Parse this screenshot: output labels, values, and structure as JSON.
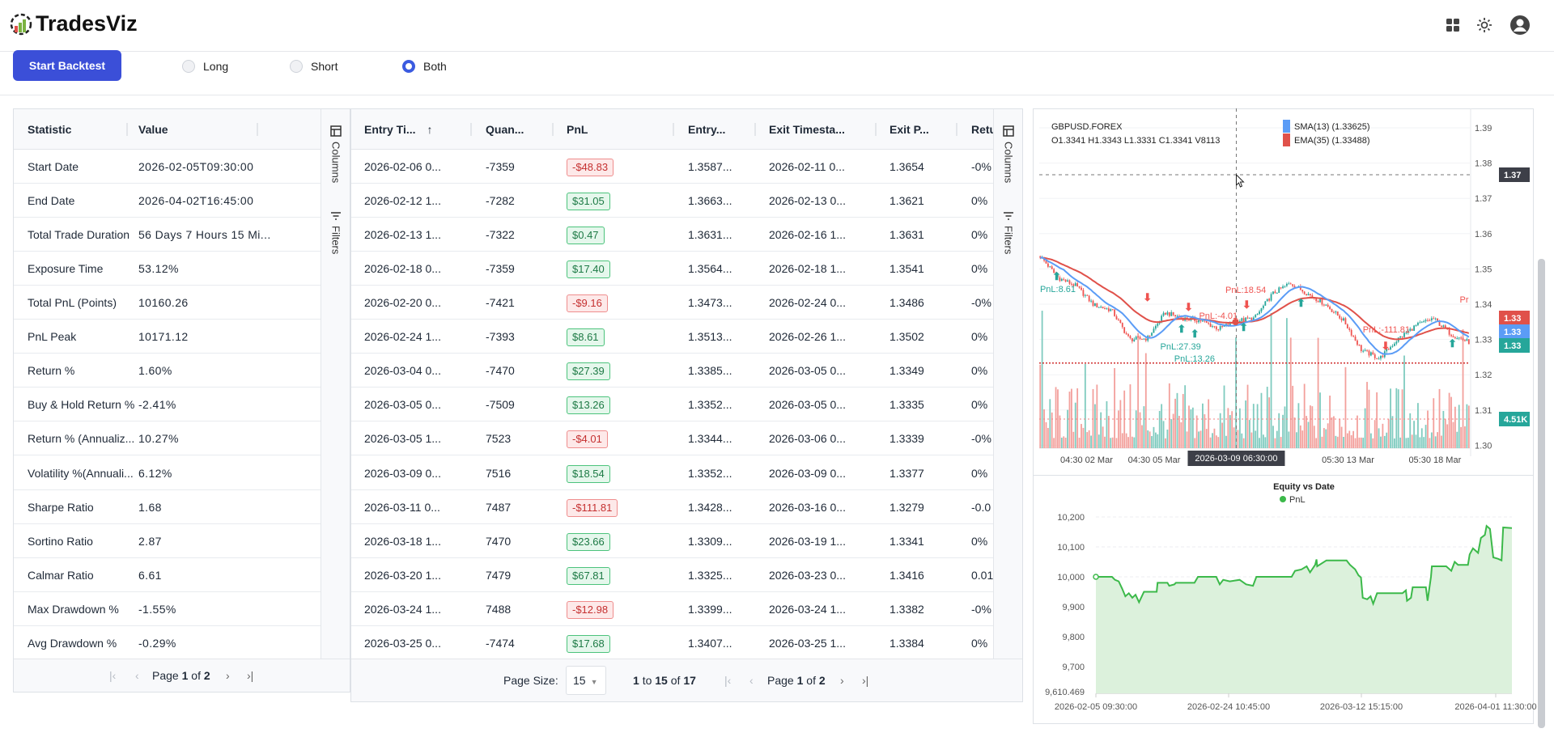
{
  "brand": {
    "name": "TradesViz"
  },
  "header_icons": [
    "apps-grid-icon",
    "theme-sun-icon",
    "user-avatar-icon"
  ],
  "toolbar": {
    "start_label": "Start Backtest",
    "directions": [
      {
        "label": "Long",
        "selected": false
      },
      {
        "label": "Short",
        "selected": false
      },
      {
        "label": "Both",
        "selected": true
      }
    ]
  },
  "side_panel": {
    "columns": "Columns",
    "filters": "Filters"
  },
  "stats": {
    "headers": [
      "Statistic",
      "Value"
    ],
    "rows": [
      [
        "Start Date",
        "2026-02-05T09:30:00"
      ],
      [
        "End Date",
        "2026-04-02T16:45:00"
      ],
      [
        "Total Trade Duration",
        "56 Days 7 Hours 15 Mi..."
      ],
      [
        "Exposure Time",
        "53.12%"
      ],
      [
        "Total PnL (Points)",
        "10160.26"
      ],
      [
        "PnL Peak",
        "10171.12"
      ],
      [
        "Return %",
        "1.60%"
      ],
      [
        "Buy & Hold Return %",
        "-2.41%"
      ],
      [
        "Return % (Annualiz...",
        "10.27%"
      ],
      [
        "Volatility %(Annuali...",
        "6.12%"
      ],
      [
        "Sharpe Ratio",
        "1.68"
      ],
      [
        "Sortino Ratio",
        "2.87"
      ],
      [
        "Calmar Ratio",
        "6.61"
      ],
      [
        "Max Drawdown %",
        "-1.55%"
      ],
      [
        "Avg Drawdown %",
        "-0.29%"
      ]
    ],
    "pagination": {
      "page_label": "Page",
      "current": "1",
      "of_label": "of",
      "total": "2"
    }
  },
  "trades": {
    "headers": [
      "Entry Ti...",
      "Quan...",
      "PnL",
      "Entry...",
      "Exit Timesta...",
      "Exit P...",
      "Retu"
    ],
    "sort": "ascending",
    "rows": [
      [
        "2026-02-06 0...",
        "-7359",
        "-$48.83",
        "1.3587...",
        "2026-02-11 0...",
        "1.3654",
        "-0%"
      ],
      [
        "2026-02-12 1...",
        "-7282",
        "$31.05",
        "1.3663...",
        "2026-02-13 0...",
        "1.3621",
        "0%"
      ],
      [
        "2026-02-13 1...",
        "-7322",
        "$0.47",
        "1.3631...",
        "2026-02-16 1...",
        "1.3631",
        "0%"
      ],
      [
        "2026-02-18 0...",
        "-7359",
        "$17.40",
        "1.3564...",
        "2026-02-18 1...",
        "1.3541",
        "0%"
      ],
      [
        "2026-02-20 0...",
        "-7421",
        "-$9.16",
        "1.3473...",
        "2026-02-24 0...",
        "1.3486",
        "-0%"
      ],
      [
        "2026-02-24 1...",
        "-7393",
        "$8.61",
        "1.3513...",
        "2026-02-26 1...",
        "1.3502",
        "0%"
      ],
      [
        "2026-03-04 0...",
        "-7470",
        "$27.39",
        "1.3385...",
        "2026-03-05 0...",
        "1.3349",
        "0%"
      ],
      [
        "2026-03-05 0...",
        "-7509",
        "$13.26",
        "1.3352...",
        "2026-03-05 0...",
        "1.3335",
        "0%"
      ],
      [
        "2026-03-05 1...",
        "7523",
        "-$4.01",
        "1.3344...",
        "2026-03-06 0...",
        "1.3339",
        "-0%"
      ],
      [
        "2026-03-09 0...",
        "7516",
        "$18.54",
        "1.3352...",
        "2026-03-09 0...",
        "1.3377",
        "0%"
      ],
      [
        "2026-03-11 0...",
        "7487",
        "-$111.81",
        "1.3428...",
        "2026-03-16 0...",
        "1.3279",
        "-0.0"
      ],
      [
        "2026-03-18 1...",
        "7470",
        "$23.66",
        "1.3309...",
        "2026-03-19 1...",
        "1.3341",
        "0%"
      ],
      [
        "2026-03-20 1...",
        "7479",
        "$67.81",
        "1.3325...",
        "2026-03-23 0...",
        "1.3416",
        "0.01"
      ],
      [
        "2026-03-24 1...",
        "7488",
        "-$12.98",
        "1.3399...",
        "2026-03-24 1...",
        "1.3382",
        "-0%"
      ],
      [
        "2026-03-25 0...",
        "-7474",
        "$17.68",
        "1.3407...",
        "2026-03-25 1...",
        "1.3384",
        "0%"
      ]
    ],
    "footer": {
      "page_size_label": "Page Size:",
      "page_size": "15",
      "from": "1",
      "to_label": "to",
      "to": "15",
      "of_label": "of",
      "total": "17",
      "page_label": "Page",
      "current": "1",
      "pages": "2"
    }
  },
  "colors": {
    "accent": "#3b4fd8",
    "up": "#26a69a",
    "down": "#ef5350",
    "sma": "#5b9cf6",
    "ema": "#e0514a",
    "equity": "#3cb94a"
  },
  "price_chart": {
    "symbol": "GBPUSD.FOREX",
    "ohlcv": "O1.3341 H1.3343 L1.3331 C1.3341 V8113",
    "legend": [
      {
        "label": "SMA(13) (1.33625)",
        "color": "#5b9cf6"
      },
      {
        "label": "EMA(35) (1.33488)",
        "color": "#e0514a"
      }
    ],
    "y_ticks": [
      "1.39",
      "1.38",
      "1.37",
      "1.36",
      "1.35",
      "1.34",
      "1.33",
      "1.32",
      "1.31",
      "1.30"
    ],
    "y_range": [
      1.3,
      1.39
    ],
    "x_ticks": [
      "04:30 02 Mar",
      "04:30 05 Mar",
      "05:30 13 Mar",
      "05:30 18 Mar"
    ],
    "crosshair": {
      "time": "2026-03-09 06:30:00",
      "price": "1.37"
    },
    "last_labels": [
      {
        "text": "1.33",
        "color": "#e0514a"
      },
      {
        "text": "1.33",
        "color": "#5b9cf6"
      },
      {
        "text": "1.33",
        "color": "#26a69a"
      }
    ],
    "volume_label": "4.51K",
    "stop_level": 1.3233,
    "close_path": [
      1.3536,
      1.3475,
      1.3452,
      1.3398,
      1.3383,
      1.33,
      1.3303,
      1.3376,
      1.336,
      1.3353,
      1.333,
      1.3353,
      1.336,
      1.3429,
      1.346,
      1.3429,
      1.3398,
      1.3353,
      1.3269,
      1.3246,
      1.33,
      1.3338,
      1.336,
      1.3315,
      1.3292
    ],
    "markers": [
      "PnL:8.61",
      "PnL:27.39",
      "PnL:13.26",
      "PnL:-4.01",
      "PnL:18.54",
      "PnL:-111.81",
      "Pr"
    ]
  },
  "chart_data": {
    "type": "area",
    "title": "Equity vs Date",
    "series": [
      {
        "name": "PnL",
        "color": "#3cb94a",
        "points": [
          [
            "2026-02-05 09:30",
            10000
          ],
          [
            "2026-02-07 17:00",
            10000
          ],
          [
            "2026-02-08 03:00",
            9990
          ],
          [
            "2026-02-08 16:00",
            9985
          ],
          [
            "2026-02-09 04:00",
            9960
          ],
          [
            "2026-02-09 15:00",
            9935
          ],
          [
            "2026-02-10 03:00",
            9945
          ],
          [
            "2026-02-10 15:00",
            9930
          ],
          [
            "2026-02-11 02:00",
            9940
          ],
          [
            "2026-02-11 14:00",
            9915
          ],
          [
            "2026-02-12 07:00",
            9950
          ],
          [
            "2026-02-14 03:00",
            9950
          ],
          [
            "2026-02-14 06:00",
            9980
          ],
          [
            "2026-02-15 16:00",
            9980
          ],
          [
            "2026-02-15 22:00",
            9970
          ],
          [
            "2026-02-16 16:00",
            9975
          ],
          [
            "2026-02-16 21:00",
            9980
          ],
          [
            "2026-02-19 13:00",
            9980
          ],
          [
            "2026-02-20 01:00",
            10000
          ],
          [
            "2026-02-22 16:00",
            10000
          ],
          [
            "2026-02-23 04:00",
            9975
          ],
          [
            "2026-02-23 16:00",
            9990
          ],
          [
            "2026-02-24 14:00",
            9985
          ],
          [
            "2026-02-25 19:00",
            9990
          ],
          [
            "2026-02-26 14:00",
            9975
          ],
          [
            "2026-02-27 10:00",
            9970
          ],
          [
            "2026-02-27 20:00",
            10000
          ],
          [
            "2026-03-04 03:00",
            10000
          ],
          [
            "2026-03-04 13:00",
            10020
          ],
          [
            "2026-03-05 08:00",
            10025
          ],
          [
            "2026-03-05 23:00",
            10035
          ],
          [
            "2026-03-06 09:00",
            10015
          ],
          [
            "2026-03-07 00:00",
            10040
          ],
          [
            "2026-03-07 04:00",
            10058
          ],
          [
            "2026-03-07 06:00",
            10035
          ],
          [
            "2026-03-08 09:00",
            10055
          ],
          [
            "2026-03-10 20:00",
            10055
          ],
          [
            "2026-03-11 06:00",
            10040
          ],
          [
            "2026-03-11 21:00",
            10025
          ],
          [
            "2026-03-12 07:00",
            10005
          ],
          [
            "2026-03-12 14:00",
            9998
          ],
          [
            "2026-03-12 20:00",
            9930
          ],
          [
            "2026-03-13 12:00",
            9925
          ],
          [
            "2026-03-14 00:00",
            9935
          ],
          [
            "2026-03-14 09:00",
            9910
          ],
          [
            "2026-03-14 23:00",
            9945
          ],
          [
            "2026-03-18 17:00",
            9945
          ],
          [
            "2026-03-19 05:00",
            9955
          ],
          [
            "2026-03-19 09:00",
            9920
          ],
          [
            "2026-03-19 23:00",
            9930
          ],
          [
            "2026-03-20 05:00",
            9965
          ],
          [
            "2026-03-22 04:00",
            9965
          ],
          [
            "2026-03-22 10:00",
            9920
          ],
          [
            "2026-03-22 22:00",
            10000
          ],
          [
            "2026-03-23 01:00",
            10035
          ],
          [
            "2026-03-25 04:00",
            10035
          ],
          [
            "2026-03-25 22:00",
            10020
          ],
          [
            "2026-03-26 10:00",
            10050
          ],
          [
            "2026-03-26 22:00",
            10040
          ],
          [
            "2026-03-28 09:00",
            10040
          ],
          [
            "2026-03-28 15:00",
            10075
          ],
          [
            "2026-03-29 03:00",
            10095
          ],
          [
            "2026-03-29 21:00",
            10080
          ],
          [
            "2026-03-30 07:00",
            10130
          ],
          [
            "2026-03-30 21:00",
            10140
          ],
          [
            "2026-03-31 03:00",
            10170
          ],
          [
            "2026-03-31 15:00",
            10160
          ],
          [
            "2026-04-01 03:00",
            10065
          ],
          [
            "2026-04-01 16:00",
            10060
          ],
          [
            "2026-04-01 22:00",
            10055
          ],
          [
            "2026-04-02 01:00",
            10165
          ],
          [
            "2026-04-02 16:45",
            10163
          ]
        ]
      }
    ],
    "y_ticks": [
      "10,200",
      "10,100",
      "10,000",
      "9,900",
      "9,800",
      "9,700"
    ],
    "y_min_label": "9,610.469",
    "ylim": [
      9610.469,
      10200
    ],
    "x_ticks": [
      "2026-02-05 09:30:00",
      "2026-02-24 10:45:00",
      "2026-03-12 15:15:00",
      "2026-04-01 11:30:00"
    ],
    "x_end": "2026-04-02 16:45",
    "grid": true,
    "legend": "top-center"
  }
}
